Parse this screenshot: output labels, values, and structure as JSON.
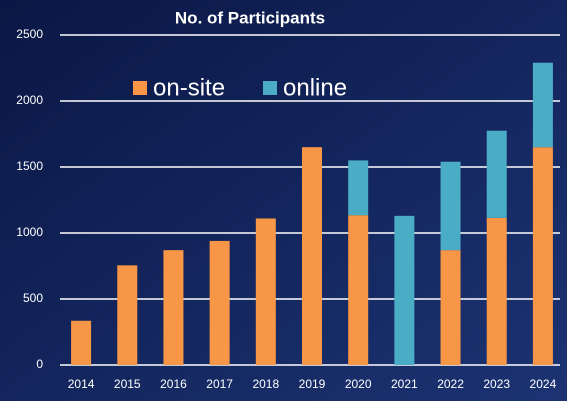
{
  "chart_data": {
    "type": "stacked_bar",
    "title": "No. of Participants",
    "categories": [
      "2014",
      "2015",
      "2016",
      "2017",
      "2018",
      "2019",
      "2020",
      "2021",
      "2022",
      "2023",
      "2024"
    ],
    "series": [
      {
        "name": "on-site",
        "color": "#f79646",
        "values": [
          335,
          755,
          870,
          940,
          1110,
          1650,
          1135,
          0,
          870,
          1115,
          1650
        ]
      },
      {
        "name": "online",
        "color": "#4bacc6",
        "values": [
          0,
          0,
          0,
          0,
          0,
          0,
          415,
          1130,
          670,
          660,
          640
        ]
      }
    ],
    "ylim": [
      0,
      2500
    ],
    "yticks": [
      0,
      500,
      1000,
      1500,
      2000,
      2500
    ],
    "grid": true
  }
}
